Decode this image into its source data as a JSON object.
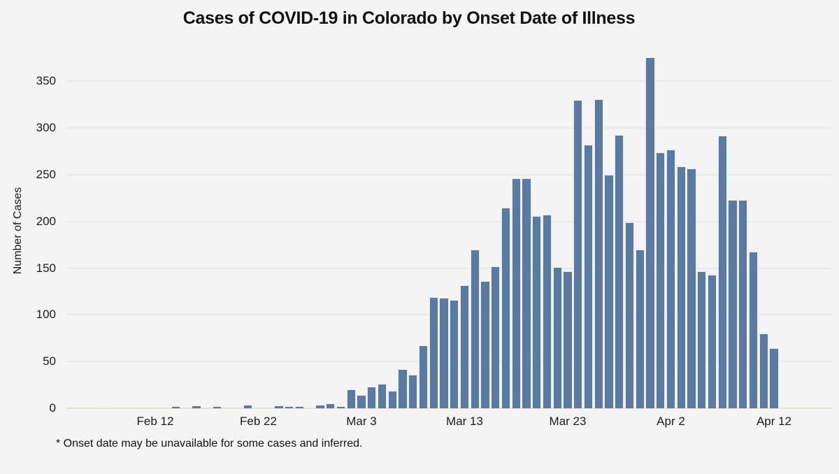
{
  "title": "Cases of COVID-19 in Colorado by Onset Date of Illness",
  "footnote": "* Onset date may be unavailable for some cases and inferred.",
  "colors": {
    "background": "#f4f4f4",
    "bar": "#5b7aa2",
    "bar_border": "#ffffff",
    "gridline": "#e9e9e9",
    "text": "#111111"
  },
  "chart_data": {
    "type": "bar",
    "title": "Cases of COVID-19 in Colorado by Onset Date of Illness",
    "xlabel": "",
    "ylabel": "Number of Cases",
    "ylim": [
      0,
      390
    ],
    "grid": true,
    "legend": "none",
    "footnote": "* Onset date may be unavailable for some cases and inferred.",
    "y_ticks": [
      0,
      50,
      100,
      150,
      200,
      250,
      300,
      350
    ],
    "x_tick_labels": [
      "Feb 12",
      "Feb 22",
      "Mar 3",
      "Mar 13",
      "Mar 23",
      "Apr 2",
      "Apr 12"
    ],
    "categories": [
      "Feb 5",
      "Feb 6",
      "Feb 7",
      "Feb 8",
      "Feb 9",
      "Feb 10",
      "Feb 11",
      "Feb 12",
      "Feb 13",
      "Feb 14",
      "Feb 15",
      "Feb 16",
      "Feb 17",
      "Feb 18",
      "Feb 19",
      "Feb 20",
      "Feb 21",
      "Feb 22",
      "Feb 23",
      "Feb 24",
      "Feb 25",
      "Feb 26",
      "Feb 27",
      "Feb 28",
      "Feb 29",
      "Mar 1",
      "Mar 2",
      "Mar 3",
      "Mar 4",
      "Mar 5",
      "Mar 6",
      "Mar 7",
      "Mar 8",
      "Mar 9",
      "Mar 10",
      "Mar 11",
      "Mar 12",
      "Mar 13",
      "Mar 14",
      "Mar 15",
      "Mar 16",
      "Mar 17",
      "Mar 18",
      "Mar 19",
      "Mar 20",
      "Mar 21",
      "Mar 22",
      "Mar 23",
      "Mar 24",
      "Mar 25",
      "Mar 26",
      "Mar 27",
      "Mar 28",
      "Mar 29",
      "Mar 30",
      "Mar 31",
      "Apr 1",
      "Apr 2",
      "Apr 3",
      "Apr 4",
      "Apr 5",
      "Apr 6",
      "Apr 7",
      "Apr 8",
      "Apr 9",
      "Apr 10",
      "Apr 11",
      "Apr 12"
    ],
    "values": [
      0,
      0,
      1,
      0,
      0,
      0,
      0,
      0,
      0,
      2,
      0,
      3,
      0,
      2,
      0,
      0,
      4,
      0,
      0,
      3,
      2,
      2,
      1,
      4,
      5,
      2,
      20,
      14,
      23,
      26,
      19,
      42,
      36,
      67,
      119,
      118,
      116,
      132,
      170,
      136,
      152,
      215,
      246,
      246,
      206,
      207,
      151,
      147,
      330,
      282,
      331,
      250,
      293,
      199,
      170,
      376,
      274,
      277,
      259,
      257,
      147,
      143,
      292,
      223,
      223,
      168,
      80,
      64
    ]
  }
}
